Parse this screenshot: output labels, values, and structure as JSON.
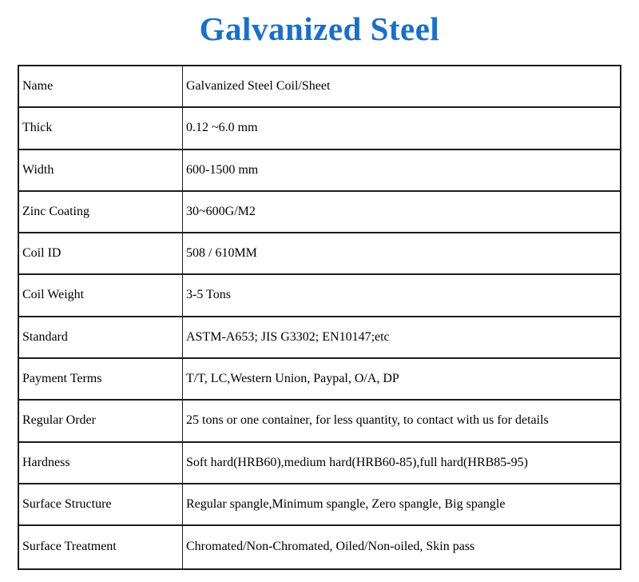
{
  "page": {
    "title": "Galvanized Steel",
    "title_color": "#1b6fc5",
    "border_color": "#1c1c1c",
    "background_color": "#ffffff"
  },
  "table": {
    "rows": [
      {
        "label": "Name",
        "value": "Galvanized Steel Coil/Sheet"
      },
      {
        "label": "Thick",
        "value": "0.12 ~6.0 mm"
      },
      {
        "label": "Width",
        "value": "600-1500 mm"
      },
      {
        "label": "Zinc Coating",
        "value": "30~600G/M2"
      },
      {
        "label": "Coil ID",
        "value": "508 / 610MM"
      },
      {
        "label": "Coil Weight",
        "value": "3-5 Tons"
      },
      {
        "label": "Standard",
        "value": "ASTM-A653; JIS G3302; EN10147;etc"
      },
      {
        "label": "Payment Terms",
        "value": "T/T, LC,Western Union, Paypal, O/A, DP"
      },
      {
        "label": "Regular Order",
        "value": "25 tons or one container, for less quantity, to contact with us for details"
      },
      {
        "label": "Hardness",
        "value": "Soft hard(HRB60),medium hard(HRB60-85),full hard(HRB85-95)"
      },
      {
        "label": "Surface Structure",
        "value": "Regular spangle,Minimum spangle, Zero spangle, Big spangle"
      },
      {
        "label": "Surface Treatment",
        "value": "Chromated/Non-Chromated, Oiled/Non-oiled, Skin pass"
      }
    ]
  }
}
